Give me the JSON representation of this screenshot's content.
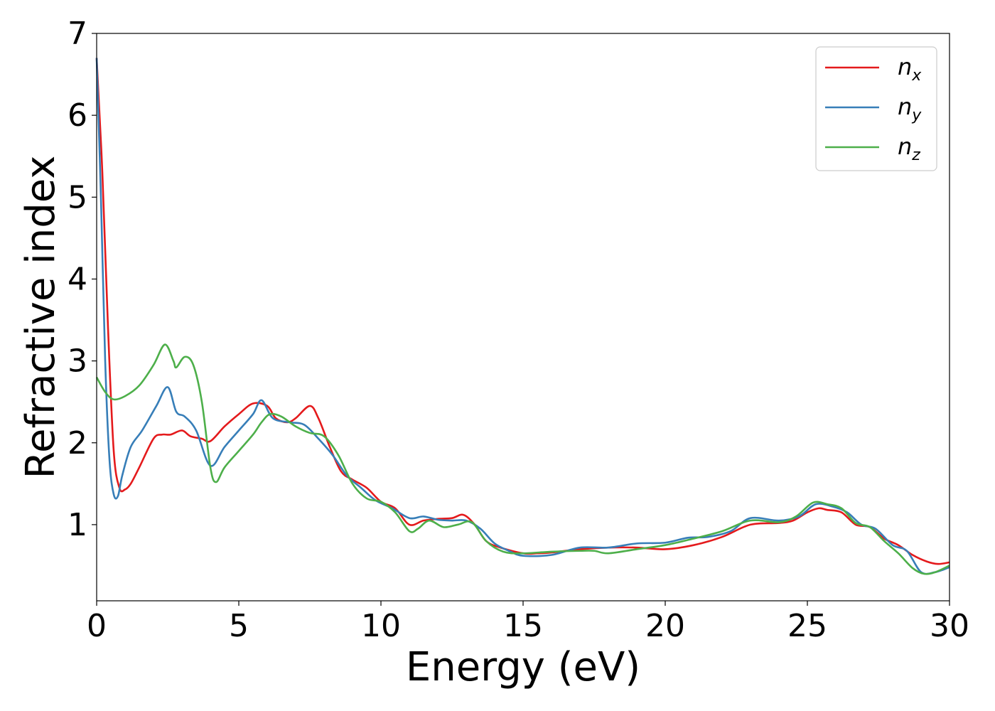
{
  "chart_data": {
    "type": "line",
    "xlabel": "Energy (eV)",
    "ylabel": "Refractive index",
    "xlim": [
      0,
      30
    ],
    "ylim": [
      0.07,
      7.0
    ],
    "xticks": [
      0,
      5,
      10,
      15,
      20,
      25,
      30
    ],
    "yticks": [
      1,
      2,
      3,
      4,
      5,
      6,
      7
    ],
    "grid": false,
    "legend_position": "top-right",
    "series": [
      {
        "name": "n_x",
        "label_base": "n",
        "label_sub": "x",
        "color": "#e41a1c",
        "x": [
          0,
          0.2,
          0.4,
          0.6,
          0.8,
          1.0,
          1.2,
          1.5,
          2.0,
          2.3,
          2.6,
          3.0,
          3.3,
          3.7,
          4.0,
          4.5,
          5.0,
          5.5,
          6.0,
          6.3,
          6.7,
          7.0,
          7.5,
          7.8,
          8.2,
          8.6,
          9.0,
          9.5,
          10.0,
          10.5,
          11.0,
          11.5,
          12.0,
          12.5,
          12.9,
          13.3,
          13.7,
          14.2,
          15.0,
          15.5,
          16.0,
          17.0,
          18.0,
          19.0,
          20.0,
          21.0,
          22.0,
          23.0,
          24.0,
          24.5,
          25.0,
          25.4,
          25.7,
          26.2,
          26.7,
          27.2,
          27.7,
          28.2,
          28.7,
          29.2,
          29.6,
          30.0
        ],
        "y": [
          6.7,
          5.3,
          3.4,
          1.9,
          1.45,
          1.43,
          1.5,
          1.7,
          2.05,
          2.1,
          2.1,
          2.15,
          2.08,
          2.05,
          2.02,
          2.2,
          2.35,
          2.48,
          2.45,
          2.3,
          2.25,
          2.3,
          2.45,
          2.3,
          1.95,
          1.65,
          1.55,
          1.45,
          1.28,
          1.2,
          1.0,
          1.05,
          1.07,
          1.08,
          1.12,
          1.0,
          0.8,
          0.72,
          0.65,
          0.65,
          0.66,
          0.7,
          0.72,
          0.72,
          0.7,
          0.75,
          0.85,
          1.0,
          1.02,
          1.05,
          1.15,
          1.2,
          1.18,
          1.15,
          1.0,
          0.97,
          0.83,
          0.75,
          0.63,
          0.55,
          0.52,
          0.54
        ]
      },
      {
        "name": "n_y",
        "label_base": "n",
        "label_sub": "y",
        "color": "#377eb8",
        "x": [
          0,
          0.15,
          0.3,
          0.45,
          0.6,
          0.75,
          0.9,
          1.2,
          1.6,
          2.1,
          2.5,
          2.8,
          3.1,
          3.5,
          4.0,
          4.5,
          5.0,
          5.5,
          5.8,
          6.2,
          6.8,
          7.3,
          7.8,
          8.3,
          8.8,
          9.3,
          9.8,
          10.4,
          11.0,
          11.5,
          12.0,
          12.5,
          13.0,
          13.5,
          14.0,
          14.5,
          15.0,
          16.0,
          17.0,
          18.0,
          19.0,
          20.0,
          20.8,
          21.5,
          22.3,
          23.0,
          24.0,
          24.7,
          25.3,
          25.9,
          26.4,
          26.9,
          27.4,
          28.0,
          28.5,
          29.0,
          29.5,
          30.0
        ],
        "y": [
          6.7,
          5.0,
          3.0,
          1.8,
          1.37,
          1.35,
          1.6,
          1.95,
          2.15,
          2.45,
          2.68,
          2.38,
          2.32,
          2.15,
          1.72,
          1.95,
          2.15,
          2.35,
          2.52,
          2.3,
          2.25,
          2.22,
          2.05,
          1.85,
          1.6,
          1.45,
          1.3,
          1.2,
          1.08,
          1.1,
          1.06,
          1.05,
          1.05,
          0.95,
          0.77,
          0.68,
          0.62,
          0.63,
          0.72,
          0.72,
          0.77,
          0.78,
          0.84,
          0.85,
          0.92,
          1.08,
          1.05,
          1.1,
          1.25,
          1.22,
          1.15,
          1.0,
          0.95,
          0.75,
          0.68,
          0.42,
          0.42,
          0.48
        ]
      },
      {
        "name": "n_z",
        "label_base": "n",
        "label_sub": "z",
        "color": "#4daf4a",
        "x": [
          0,
          0.3,
          0.6,
          1.0,
          1.5,
          2.0,
          2.4,
          2.7,
          2.8,
          3.1,
          3.4,
          3.7,
          4.0,
          4.2,
          4.5,
          5.0,
          5.5,
          5.8,
          6.1,
          6.5,
          7.0,
          7.5,
          8.0,
          8.5,
          9.0,
          9.5,
          10.0,
          10.5,
          11.0,
          11.3,
          11.7,
          12.2,
          12.7,
          13.2,
          13.7,
          14.3,
          15.0,
          16.0,
          17.0,
          17.5,
          18.0,
          19.0,
          20.0,
          21.0,
          22.0,
          23.0,
          24.0,
          24.6,
          25.2,
          25.7,
          26.2,
          26.7,
          27.2,
          27.7,
          28.2,
          28.7,
          29.1,
          29.5,
          30.0
        ],
        "y": [
          2.8,
          2.62,
          2.53,
          2.57,
          2.7,
          2.95,
          3.2,
          3.0,
          2.92,
          3.05,
          2.95,
          2.5,
          1.7,
          1.52,
          1.7,
          1.9,
          2.1,
          2.25,
          2.35,
          2.32,
          2.2,
          2.12,
          2.08,
          1.85,
          1.5,
          1.32,
          1.28,
          1.15,
          0.92,
          0.95,
          1.05,
          0.97,
          1.0,
          1.03,
          0.8,
          0.67,
          0.65,
          0.67,
          0.68,
          0.68,
          0.65,
          0.7,
          0.75,
          0.83,
          0.92,
          1.05,
          1.03,
          1.1,
          1.27,
          1.25,
          1.2,
          1.02,
          0.97,
          0.8,
          0.65,
          0.47,
          0.4,
          0.42,
          0.5
        ]
      }
    ]
  }
}
